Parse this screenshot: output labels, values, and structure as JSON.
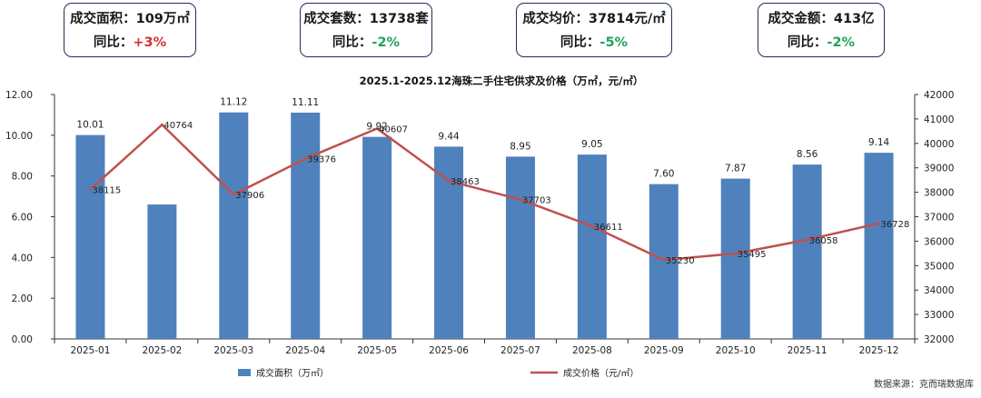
{
  "kpis": [
    {
      "label": "成交面积：",
      "value": "109万㎡",
      "yoy_label": "同比：",
      "yoy": "+3%",
      "dir": "up"
    },
    {
      "label": "成交套数：",
      "value": "13738套",
      "yoy_label": "同比：",
      "yoy": "-2%",
      "dir": "down"
    },
    {
      "label": "成交均价：",
      "value": "37814元/㎡",
      "yoy_label": "同比：",
      "yoy": "-5%",
      "dir": "down"
    },
    {
      "label": "成交金额：",
      "value": "413亿",
      "yoy_label": "同比：",
      "yoy": "-2%",
      "dir": "down"
    }
  ],
  "source": "数据来源：克而瑞数据库",
  "chart_data": {
    "type": "bar+line",
    "title": "2025.1-2025.12海珠二手住宅供求及价格（万㎡，元/㎡）",
    "categories": [
      "2025-01",
      "2025-02",
      "2025-03",
      "2025-04",
      "2025-05",
      "2025-06",
      "2025-07",
      "2025-08",
      "2025-09",
      "2025-10",
      "2025-11",
      "2025-12"
    ],
    "series": [
      {
        "name": "成交面积（万㎡）",
        "type": "bar",
        "axis": "left",
        "color": "#4f81bd",
        "values": [
          10.01,
          6.6,
          11.12,
          11.11,
          9.92,
          9.44,
          8.95,
          9.05,
          7.6,
          7.87,
          8.56,
          9.14
        ],
        "labels": [
          "10.01",
          null,
          "11.12",
          "11.11",
          "9.92",
          "9.44",
          "8.95",
          "9.05",
          "7.60",
          "7.87",
          "8.56",
          "9.14"
        ]
      },
      {
        "name": "成交价格（元/㎡）",
        "type": "line",
        "axis": "right",
        "color": "#c0504d",
        "values": [
          38115,
          40764,
          37906,
          39376,
          40607,
          38463,
          37703,
          36611,
          35230,
          35495,
          36058,
          36728
        ]
      }
    ],
    "left_axis": {
      "min": 0,
      "max": 12,
      "step": 2,
      "decimals": 2,
      "ticks": [
        "0.00",
        "2.00",
        "4.00",
        "6.00",
        "8.00",
        "10.00",
        "12.00"
      ]
    },
    "right_axis": {
      "min": 32000,
      "max": 42000,
      "step": 1000,
      "ticks": [
        "32000",
        "33000",
        "34000",
        "35000",
        "36000",
        "37000",
        "38000",
        "39000",
        "40000",
        "41000",
        "42000"
      ]
    },
    "legend_position": "bottom"
  }
}
